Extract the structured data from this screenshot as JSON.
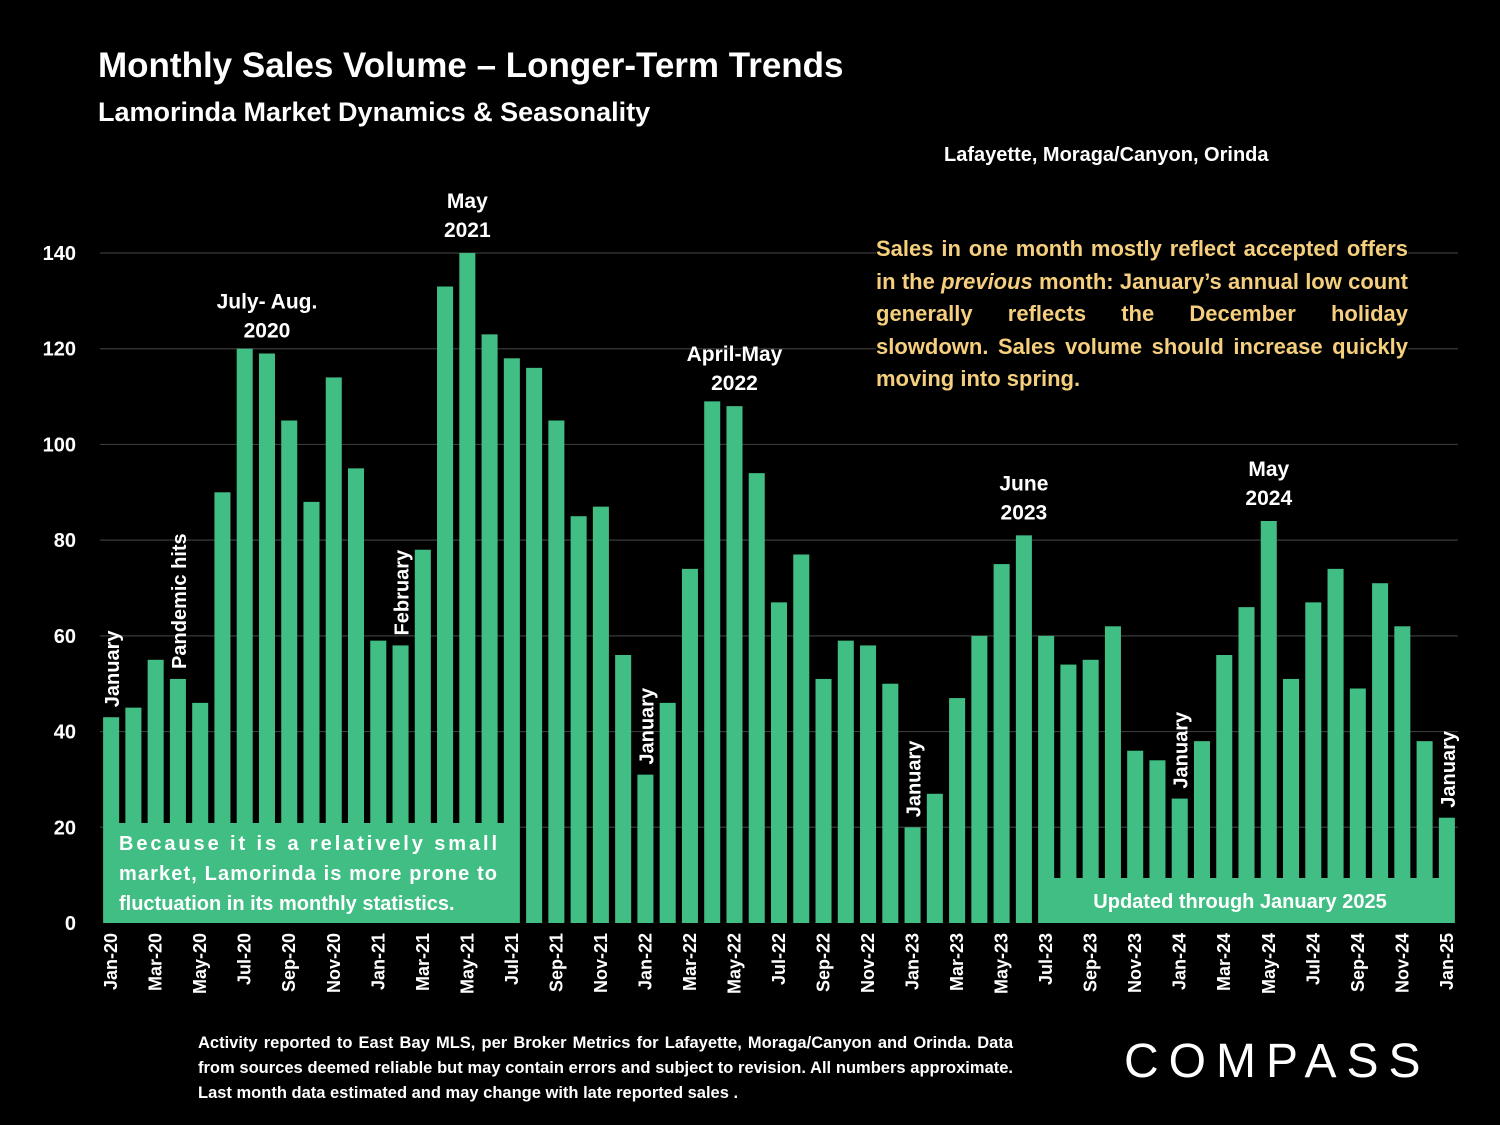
{
  "title": "Monthly Sales Volume – Longer-Term Trends",
  "subtitle": "Lamorinda Market Dynamics & Seasonality",
  "region": "Lafayette, Moraga/Canyon, Orinda",
  "note_parts": [
    "Sales in one month mostly reflect accepted offers in the ",
    "previous",
    " month:  January’s annual low count generally reflects the December holiday slowdown. Sales volume should increase quickly moving into spring."
  ],
  "footer": "Activity reported to East Bay MLS, per Broker Metrics for Lafayette, Moraga/Canyon and Orinda. Data from sources deemed reliable but may contain errors and subject to revision. All numbers approximate. Last month data estimated and may change with late reported sales .",
  "logo": "COMPASS",
  "colors": {
    "background": "#000000",
    "bar": "#41be84",
    "text": "#ffffff",
    "note": "#f5cf7d",
    "gridline": "#3a3a3a"
  },
  "chart_data": {
    "type": "bar",
    "ylim": [
      0,
      140
    ],
    "yticks": [
      0,
      20,
      40,
      60,
      80,
      100,
      120,
      140
    ],
    "grid": true,
    "categories": [
      "Jan-20",
      "Feb-20",
      "Mar-20",
      "Apr-20",
      "May-20",
      "Jun-20",
      "Jul-20",
      "Aug-20",
      "Sep-20",
      "Oct-20",
      "Nov-20",
      "Dec-20",
      "Jan-21",
      "Feb-21",
      "Mar-21",
      "Apr-21",
      "May-21",
      "Jun-21",
      "Jul-21",
      "Aug-21",
      "Sep-21",
      "Oct-21",
      "Nov-21",
      "Dec-21",
      "Jan-22",
      "Feb-22",
      "Mar-22",
      "Apr-22",
      "May-22",
      "Jun-22",
      "Jul-22",
      "Aug-22",
      "Sep-22",
      "Oct-22",
      "Nov-22",
      "Dec-22",
      "Jan-23",
      "Feb-23",
      "Mar-23",
      "Apr-23",
      "May-23",
      "Jun-23",
      "Jul-23",
      "Aug-23",
      "Sep-23",
      "Oct-23",
      "Nov-23",
      "Dec-23",
      "Jan-24",
      "Feb-24",
      "Mar-24",
      "Apr-24",
      "May-24",
      "Jun-24",
      "Jul-24",
      "Aug-24",
      "Sep-24",
      "Oct-24",
      "Nov-24",
      "Dec-24",
      "Jan-25"
    ],
    "values": [
      43,
      45,
      55,
      51,
      46,
      90,
      120,
      119,
      105,
      88,
      114,
      95,
      59,
      58,
      78,
      133,
      140,
      123,
      118,
      116,
      105,
      85,
      87,
      56,
      31,
      46,
      74,
      109,
      108,
      94,
      67,
      77,
      51,
      59,
      58,
      50,
      20,
      27,
      47,
      60,
      75,
      81,
      60,
      54,
      55,
      62,
      36,
      34,
      26,
      38,
      56,
      66,
      84,
      51,
      67,
      74,
      49,
      71,
      62,
      38,
      22
    ],
    "shown_tick_labels": [
      "Jan-20",
      "Mar-20",
      "May-20",
      "Jul-20",
      "Sep-20",
      "Nov-20",
      "Jan-21",
      "Mar-21",
      "May-21",
      "Jul-21",
      "Sep-21",
      "Nov-21",
      "Jan-22",
      "Mar-22",
      "May-22",
      "Jul-22",
      "Sep-22",
      "Nov-22",
      "Jan-23",
      "Mar-23",
      "May-23",
      "Jul-23",
      "Sep-23",
      "Nov-23",
      "Jan-24",
      "Mar-24",
      "May-24",
      "Jul-24",
      "Sep-24",
      "Nov-24",
      "Jan-25"
    ],
    "annotations": [
      {
        "index": 0,
        "text": "January",
        "vertical": true
      },
      {
        "index": 3,
        "text": "Pandemic hits",
        "vertical": true
      },
      {
        "index": 7,
        "lines": [
          "July- Aug.",
          "2020"
        ]
      },
      {
        "index": 13,
        "text": "February",
        "vertical": true
      },
      {
        "index": 16,
        "lines": [
          "May",
          "2021"
        ]
      },
      {
        "index": 24,
        "text": "January",
        "vertical": true
      },
      {
        "index": 28,
        "lines": [
          "April-May",
          "2022"
        ]
      },
      {
        "index": 36,
        "text": "January",
        "vertical": true
      },
      {
        "index": 41,
        "lines": [
          "June",
          "2023"
        ]
      },
      {
        "index": 48,
        "text": "January",
        "vertical": true
      },
      {
        "index": 52,
        "lines": [
          "May",
          "2024"
        ]
      },
      {
        "index": 60,
        "text": "January",
        "vertical": true
      }
    ],
    "boxes": [
      {
        "text": "Because it is a relatively small market, Lamorinda is more prone to fluctuation in its monthly statistics."
      },
      {
        "text": "Updated through January 2025"
      }
    ]
  }
}
